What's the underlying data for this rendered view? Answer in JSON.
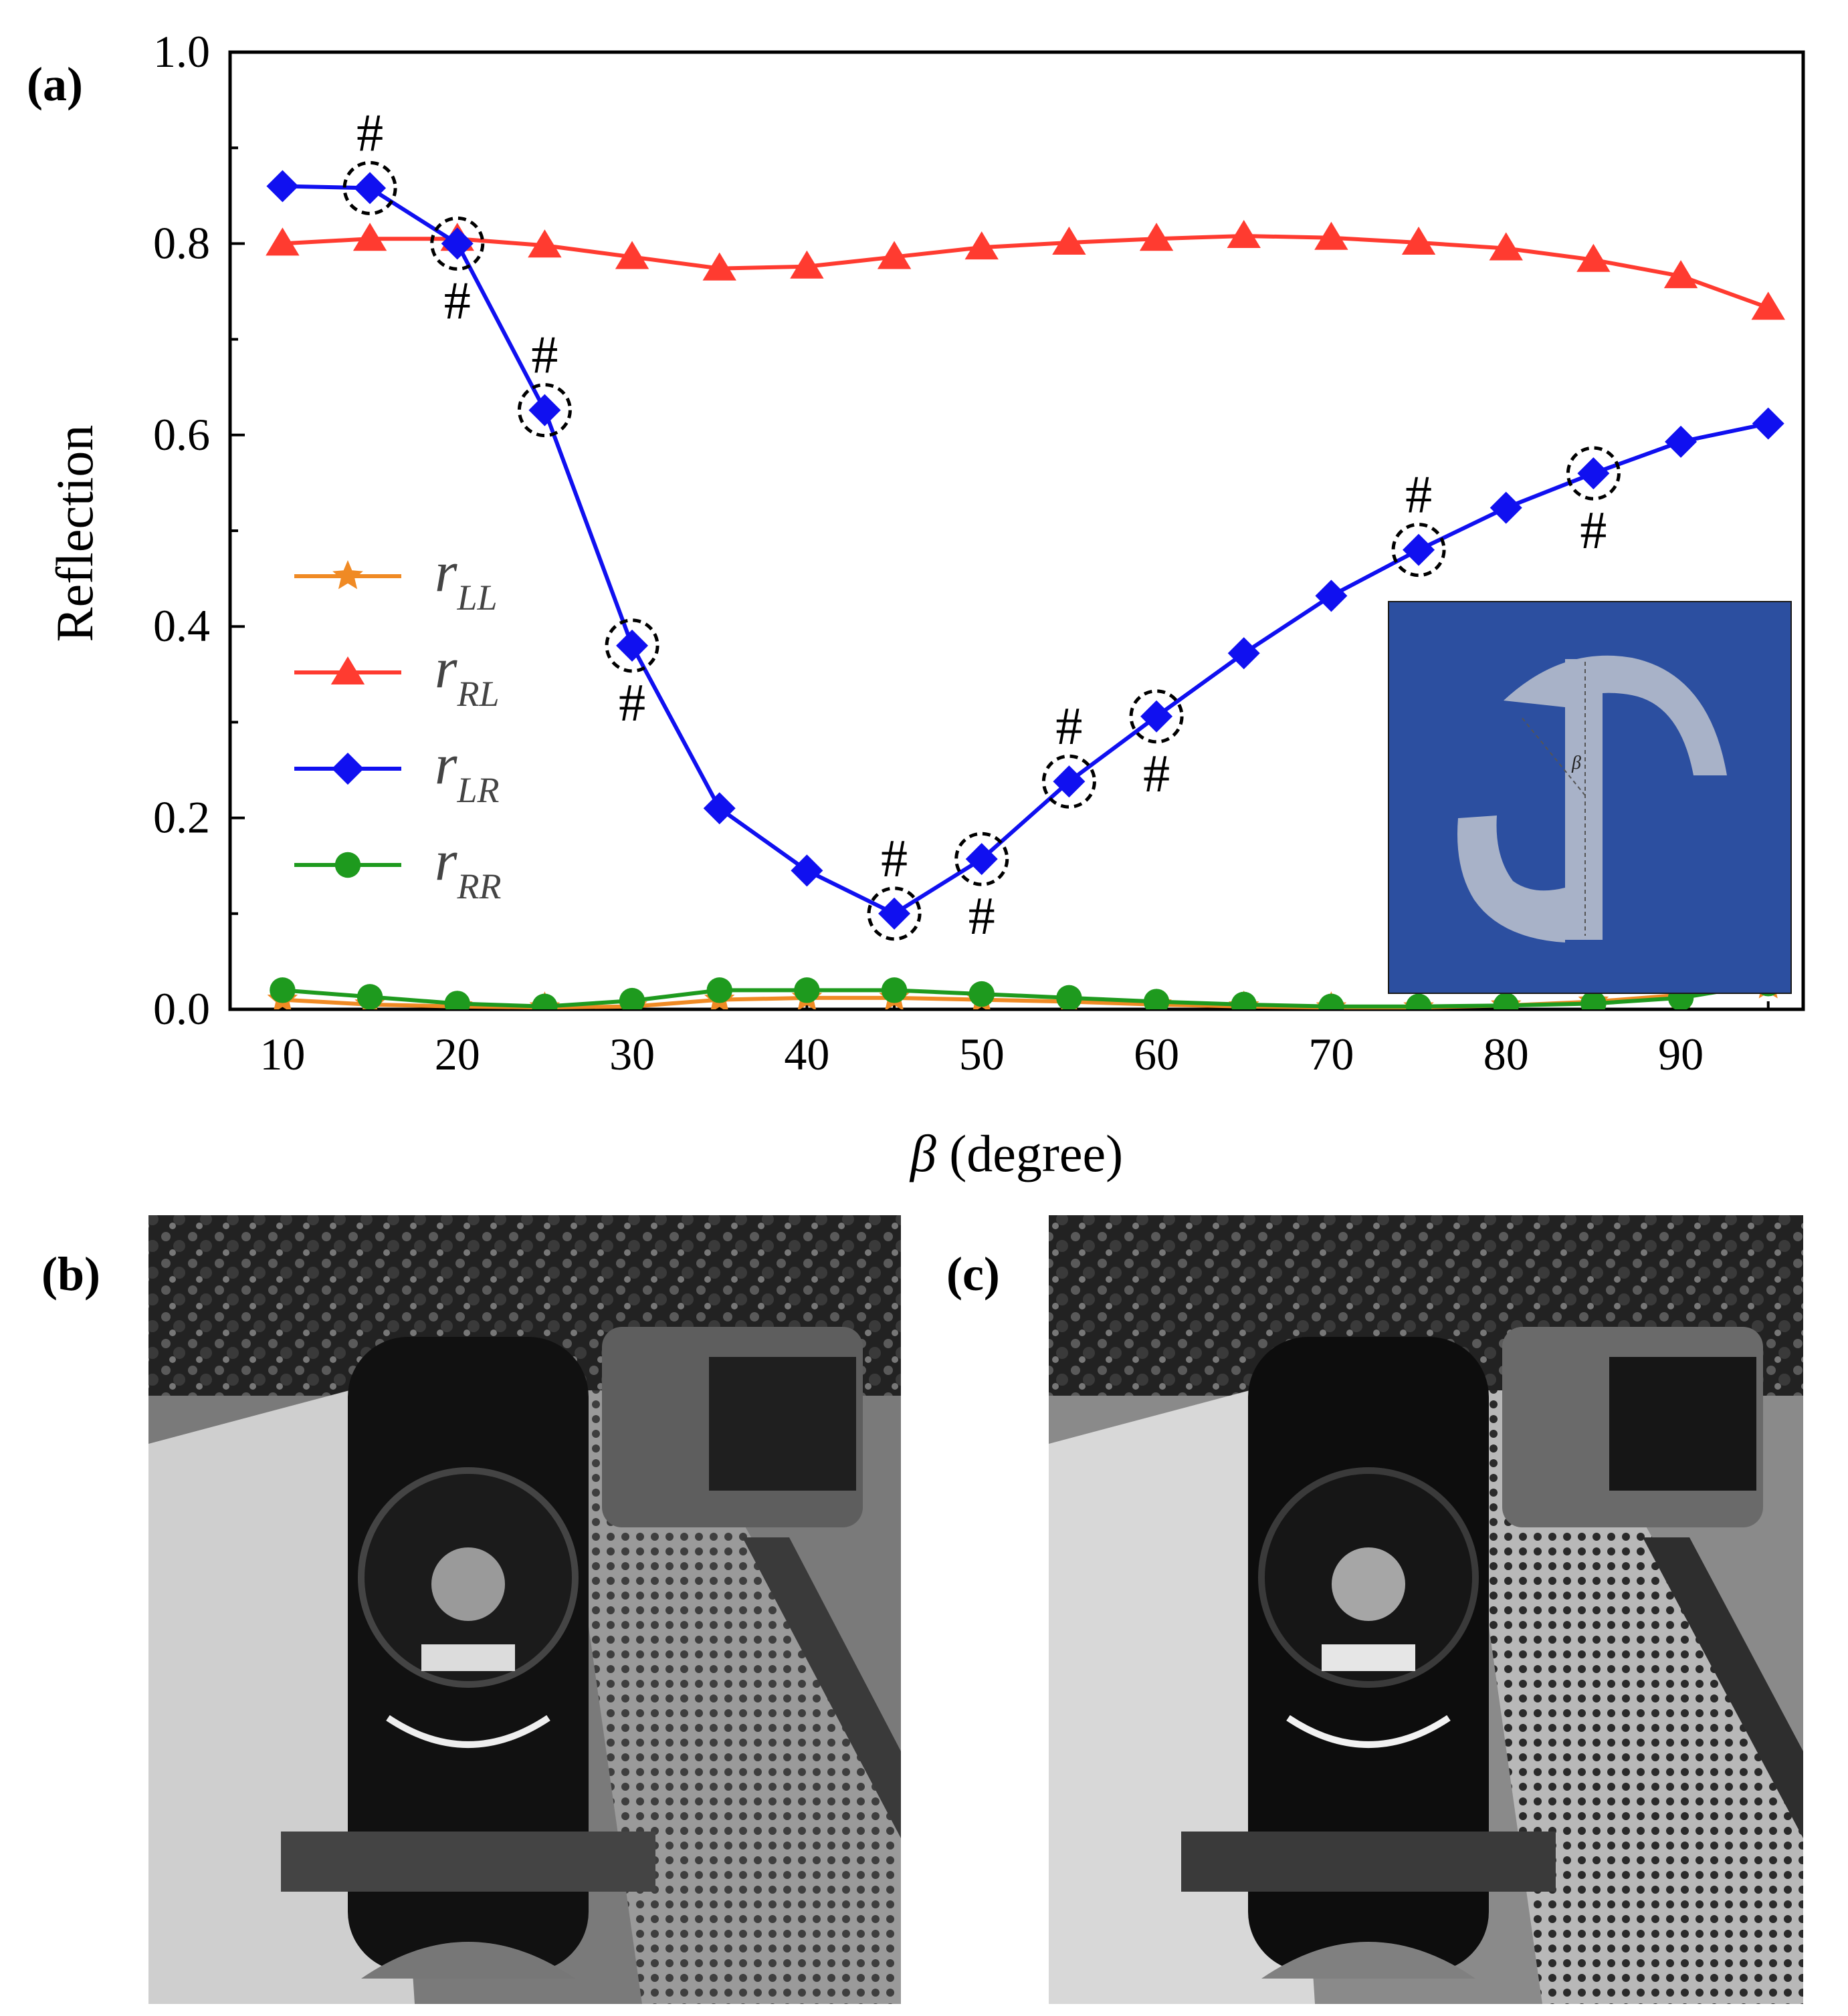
{
  "panels": {
    "a": "(a)",
    "b": "(b)",
    "c": "(c)"
  },
  "chart_data": {
    "type": "line",
    "title": "",
    "xlabel_symbol": "β",
    "xlabel_unit": "(degree)",
    "ylabel": "Reflection",
    "xlim": [
      7,
      97
    ],
    "ylim": [
      0,
      1
    ],
    "x_ticks": [
      10,
      20,
      30,
      40,
      50,
      60,
      70,
      80,
      90
    ],
    "y_ticks": [
      "0.0",
      "0.2",
      "0.4",
      "0.6",
      "0.8",
      "1.0"
    ],
    "x": [
      10,
      15,
      20,
      25,
      30,
      35,
      40,
      45,
      50,
      55,
      60,
      65,
      70,
      75,
      80,
      85,
      90,
      95
    ],
    "legend_position": "center-left",
    "series": [
      {
        "name": "r",
        "sub": "LL",
        "color": "#F08A24",
        "marker": "star",
        "values": [
          0.01,
          0.005,
          0.003,
          0.002,
          0.003,
          0.01,
          0.012,
          0.012,
          0.01,
          0.008,
          0.005,
          0.003,
          0.002,
          0.002,
          0.004,
          0.008,
          0.015,
          0.025
        ]
      },
      {
        "name": "r",
        "sub": "RL",
        "color": "#FF3B30",
        "marker": "triangle",
        "values": [
          0.8,
          0.805,
          0.805,
          0.798,
          0.786,
          0.774,
          0.776,
          0.786,
          0.796,
          0.801,
          0.805,
          0.808,
          0.806,
          0.801,
          0.795,
          0.783,
          0.766,
          0.733
        ]
      },
      {
        "name": "r",
        "sub": "LR",
        "color": "#1010F0",
        "marker": "diamond",
        "values": [
          0.86,
          0.858,
          0.8,
          0.626,
          0.38,
          0.21,
          0.145,
          0.1,
          0.157,
          0.238,
          0.306,
          0.372,
          0.432,
          0.48,
          0.524,
          0.56,
          0.593,
          0.612
        ]
      },
      {
        "name": "r",
        "sub": "RR",
        "color": "#1E9A1E",
        "marker": "circle",
        "values": [
          0.02,
          0.013,
          0.006,
          0.003,
          0.009,
          0.02,
          0.02,
          0.02,
          0.016,
          0.012,
          0.008,
          0.005,
          0.003,
          0.003,
          0.004,
          0.006,
          0.012,
          0.027
        ]
      }
    ],
    "annotations": {
      "symbol": "#",
      "circled_points": [
        {
          "x": 15,
          "y": 0.858,
          "mark": "above"
        },
        {
          "x": 20,
          "y": 0.8,
          "mark": "below"
        },
        {
          "x": 25,
          "y": 0.626,
          "mark": "above"
        },
        {
          "x": 30,
          "y": 0.38,
          "mark": "below"
        },
        {
          "x": 45,
          "y": 0.1,
          "mark": "above"
        },
        {
          "x": 50,
          "y": 0.157,
          "mark": "below"
        },
        {
          "x": 55,
          "y": 0.238,
          "mark": "above"
        },
        {
          "x": 60,
          "y": 0.306,
          "mark": "below"
        },
        {
          "x": 75,
          "y": 0.48,
          "mark": "above"
        },
        {
          "x": 85,
          "y": 0.56,
          "mark": "below"
        }
      ]
    },
    "inset": {
      "description_label": "β",
      "background": "#2C4FA0",
      "shape_color": "#A8B2C8"
    }
  },
  "images": {
    "b": {
      "scene": "steam-locomotive-grayscale"
    },
    "c": {
      "scene": "steam-locomotive-grayscale-quantized"
    }
  }
}
